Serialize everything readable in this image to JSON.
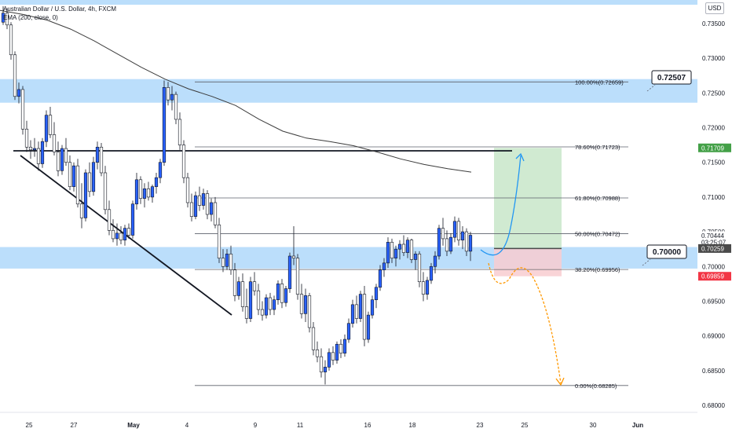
{
  "header": {
    "title": "Australian Dollar / U.S. Dollar, 4h, FXCM",
    "indicator": "EMA (200, close, 0)",
    "currency_button": "USD"
  },
  "colors": {
    "up": "#2962ff",
    "down": "#ffffff",
    "wick": "#131722",
    "zone": "#bbdefb",
    "target": "#c8e6c9",
    "stop": "#f8cdd0",
    "ema": "#3c3c3c",
    "arrow_up": "#2196f3",
    "arrow_down": "#ff9800",
    "green_label": "#43a047",
    "red_label": "#f23645",
    "price_label": "#4a4a4a"
  },
  "chart_data": {
    "type": "candlestick",
    "symbol": "Australian Dollar / U.S. Dollar",
    "timeframe": "4h",
    "source": "FXCM",
    "x_tick_labels": [
      "25",
      "27",
      "May",
      "4",
      "9",
      "11",
      "16",
      "18",
      "23",
      "25",
      "30",
      "Jun"
    ],
    "y_tick_labels": [
      "0.73500",
      "0.73000",
      "0.72500",
      "0.72000",
      "0.71500",
      "0.71000",
      "0.70500",
      "0.70000",
      "0.69500",
      "0.69000",
      "0.68500",
      "0.68000"
    ],
    "y_ticks": [
      0.735,
      0.73,
      0.725,
      0.72,
      0.715,
      0.71,
      0.705,
      0.7,
      0.695,
      0.69,
      0.685,
      0.68
    ],
    "fib_levels": [
      {
        "label": "100.00%(0.72659)",
        "price": 0.72659
      },
      {
        "label": "78.60%(0.71723)",
        "price": 0.71723
      },
      {
        "label": "61.80%(0.70988)",
        "price": 0.70988
      },
      {
        "label": "50.00%(0.70472)",
        "price": 0.70472
      },
      {
        "label": "38.20%(0.69956)",
        "price": 0.69956
      },
      {
        "label": "0.00%(0.68285)",
        "price": 0.68285
      }
    ],
    "zones": [
      {
        "from": 0.7236,
        "to": 0.727
      },
      {
        "from": 0.6997,
        "to": 0.7028
      }
    ],
    "callouts": [
      {
        "label": "0.72507",
        "price": 0.72507
      },
      {
        "label": "0.70000",
        "price": 0.7
      }
    ],
    "price_labels": [
      {
        "label": "0.71709",
        "price": 0.71709,
        "style": "green"
      },
      {
        "label": "0.70444",
        "price": 0.70444,
        "style": "plain"
      },
      {
        "label": "03:25:07",
        "price": 0.7035,
        "style": "plain"
      },
      {
        "label": "0.70259",
        "price": 0.70259,
        "style": "dark"
      },
      {
        "label": "0.69859",
        "price": 0.69859,
        "style": "red"
      }
    ],
    "position": {
      "entry": 0.70259,
      "target": 0.71709,
      "stop": 0.69859
    },
    "ema_200": [
      [
        0,
        0.7369
      ],
      [
        30,
        0.7363
      ],
      [
        60,
        0.7355
      ],
      [
        90,
        0.7342
      ],
      [
        120,
        0.7325
      ],
      [
        150,
        0.7306
      ],
      [
        180,
        0.7287
      ],
      [
        210,
        0.727
      ],
      [
        240,
        0.7256
      ],
      [
        270,
        0.7245
      ],
      [
        300,
        0.7232
      ],
      [
        330,
        0.7212
      ],
      [
        360,
        0.7195
      ],
      [
        390,
        0.7185
      ],
      [
        420,
        0.718
      ],
      [
        450,
        0.7174
      ],
      [
        480,
        0.7165
      ],
      [
        510,
        0.7155
      ],
      [
        540,
        0.7147
      ],
      [
        570,
        0.7141
      ],
      [
        600,
        0.7136
      ]
    ],
    "candles": [
      {
        "i": 0,
        "o": 0.7352,
        "h": 0.7375,
        "l": 0.7348,
        "c": 0.7365
      },
      {
        "i": 1,
        "o": 0.7365,
        "h": 0.7372,
        "l": 0.7342,
        "c": 0.7348
      },
      {
        "i": 2,
        "o": 0.7348,
        "h": 0.7352,
        "l": 0.7298,
        "c": 0.7305
      },
      {
        "i": 3,
        "o": 0.7305,
        "h": 0.731,
        "l": 0.724,
        "c": 0.7245
      },
      {
        "i": 4,
        "o": 0.7245,
        "h": 0.7265,
        "l": 0.7235,
        "c": 0.7255
      },
      {
        "i": 5,
        "o": 0.7255,
        "h": 0.726,
        "l": 0.719,
        "c": 0.7198
      },
      {
        "i": 6,
        "o": 0.7198,
        "h": 0.721,
        "l": 0.7165,
        "c": 0.7172
      },
      {
        "i": 7,
        "o": 0.7172,
        "h": 0.7182,
        "l": 0.7155,
        "c": 0.7168
      },
      {
        "i": 8,
        "o": 0.7168,
        "h": 0.7185,
        "l": 0.7158,
        "c": 0.717
      },
      {
        "i": 9,
        "o": 0.717,
        "h": 0.718,
        "l": 0.7138,
        "c": 0.7148
      },
      {
        "i": 10,
        "o": 0.7148,
        "h": 0.7185,
        "l": 0.7142,
        "c": 0.718
      },
      {
        "i": 11,
        "o": 0.718,
        "h": 0.7225,
        "l": 0.7172,
        "c": 0.7218
      },
      {
        "i": 12,
        "o": 0.7218,
        "h": 0.723,
        "l": 0.7185,
        "c": 0.719
      },
      {
        "i": 13,
        "o": 0.719,
        "h": 0.7208,
        "l": 0.716,
        "c": 0.7165
      },
      {
        "i": 14,
        "o": 0.7165,
        "h": 0.718,
        "l": 0.713,
        "c": 0.7138
      },
      {
        "i": 15,
        "o": 0.7138,
        "h": 0.7175,
        "l": 0.7132,
        "c": 0.717
      },
      {
        "i": 16,
        "o": 0.717,
        "h": 0.7185,
        "l": 0.7145,
        "c": 0.715
      },
      {
        "i": 17,
        "o": 0.715,
        "h": 0.716,
        "l": 0.711,
        "c": 0.7115
      },
      {
        "i": 18,
        "o": 0.7115,
        "h": 0.715,
        "l": 0.7108,
        "c": 0.7145
      },
      {
        "i": 19,
        "o": 0.7145,
        "h": 0.7155,
        "l": 0.7085,
        "c": 0.709
      },
      {
        "i": 20,
        "o": 0.709,
        "h": 0.712,
        "l": 0.7055,
        "c": 0.707
      },
      {
        "i": 21,
        "o": 0.707,
        "h": 0.714,
        "l": 0.7065,
        "c": 0.7135
      },
      {
        "i": 22,
        "o": 0.7135,
        "h": 0.715,
        "l": 0.71,
        "c": 0.7108
      },
      {
        "i": 23,
        "o": 0.7108,
        "h": 0.7158,
        "l": 0.7102,
        "c": 0.715
      },
      {
        "i": 24,
        "o": 0.715,
        "h": 0.718,
        "l": 0.714,
        "c": 0.7172
      },
      {
        "i": 25,
        "o": 0.7172,
        "h": 0.7178,
        "l": 0.713,
        "c": 0.7135
      },
      {
        "i": 26,
        "o": 0.7135,
        "h": 0.7145,
        "l": 0.7075,
        "c": 0.7082
      },
      {
        "i": 27,
        "o": 0.7082,
        "h": 0.7095,
        "l": 0.7045,
        "c": 0.7052
      },
      {
        "i": 28,
        "o": 0.7052,
        "h": 0.7068,
        "l": 0.7035,
        "c": 0.704
      },
      {
        "i": 29,
        "o": 0.704,
        "h": 0.7062,
        "l": 0.703,
        "c": 0.7048
      },
      {
        "i": 30,
        "o": 0.7048,
        "h": 0.7058,
        "l": 0.7032,
        "c": 0.7038
      },
      {
        "i": 31,
        "o": 0.7038,
        "h": 0.706,
        "l": 0.703,
        "c": 0.7055
      },
      {
        "i": 32,
        "o": 0.7055,
        "h": 0.7062,
        "l": 0.704,
        "c": 0.7045
      },
      {
        "i": 33,
        "o": 0.7045,
        "h": 0.7095,
        "l": 0.704,
        "c": 0.709
      },
      {
        "i": 34,
        "o": 0.709,
        "h": 0.7135,
        "l": 0.7082,
        "c": 0.7125
      },
      {
        "i": 35,
        "o": 0.7125,
        "h": 0.713,
        "l": 0.709,
        "c": 0.7098
      },
      {
        "i": 36,
        "o": 0.7098,
        "h": 0.712,
        "l": 0.7085,
        "c": 0.7112
      },
      {
        "i": 37,
        "o": 0.7112,
        "h": 0.7122,
        "l": 0.7095,
        "c": 0.71
      },
      {
        "i": 38,
        "o": 0.71,
        "h": 0.7118,
        "l": 0.7092,
        "c": 0.7115
      },
      {
        "i": 39,
        "o": 0.7115,
        "h": 0.7135,
        "l": 0.7105,
        "c": 0.7128
      },
      {
        "i": 40,
        "o": 0.7128,
        "h": 0.7155,
        "l": 0.712,
        "c": 0.715
      },
      {
        "i": 41,
        "o": 0.715,
        "h": 0.7268,
        "l": 0.7145,
        "c": 0.7258
      },
      {
        "i": 42,
        "o": 0.7258,
        "h": 0.7266,
        "l": 0.7232,
        "c": 0.724
      },
      {
        "i": 43,
        "o": 0.724,
        "h": 0.726,
        "l": 0.7225,
        "c": 0.7248
      },
      {
        "i": 44,
        "o": 0.7248,
        "h": 0.7252,
        "l": 0.7205,
        "c": 0.7212
      },
      {
        "i": 45,
        "o": 0.7212,
        "h": 0.7222,
        "l": 0.7168,
        "c": 0.7175
      },
      {
        "i": 46,
        "o": 0.7175,
        "h": 0.7182,
        "l": 0.712,
        "c": 0.7128
      },
      {
        "i": 47,
        "o": 0.7128,
        "h": 0.7135,
        "l": 0.7085,
        "c": 0.7092
      },
      {
        "i": 48,
        "o": 0.7092,
        "h": 0.7105,
        "l": 0.7065,
        "c": 0.7072
      },
      {
        "i": 49,
        "o": 0.7072,
        "h": 0.7108,
        "l": 0.7068,
        "c": 0.7102
      },
      {
        "i": 50,
        "o": 0.7102,
        "h": 0.7115,
        "l": 0.708,
        "c": 0.7088
      },
      {
        "i": 51,
        "o": 0.7088,
        "h": 0.7112,
        "l": 0.7082,
        "c": 0.7105
      },
      {
        "i": 52,
        "o": 0.7105,
        "h": 0.711,
        "l": 0.7068,
        "c": 0.7075
      },
      {
        "i": 53,
        "o": 0.7075,
        "h": 0.7098,
        "l": 0.7065,
        "c": 0.7092
      },
      {
        "i": 54,
        "o": 0.7092,
        "h": 0.71,
        "l": 0.7055,
        "c": 0.706
      },
      {
        "i": 55,
        "o": 0.706,
        "h": 0.707,
        "l": 0.7005,
        "c": 0.7012
      },
      {
        "i": 56,
        "o": 0.7012,
        "h": 0.7025,
        "l": 0.6992,
        "c": 0.7
      },
      {
        "i": 57,
        "o": 0.7,
        "h": 0.7025,
        "l": 0.6995,
        "c": 0.7018
      },
      {
        "i": 58,
        "o": 0.7018,
        "h": 0.703,
        "l": 0.6988,
        "c": 0.6995
      },
      {
        "i": 59,
        "o": 0.6995,
        "h": 0.7005,
        "l": 0.695,
        "c": 0.6958
      },
      {
        "i": 60,
        "o": 0.6958,
        "h": 0.6985,
        "l": 0.6952,
        "c": 0.6978
      },
      {
        "i": 61,
        "o": 0.6978,
        "h": 0.699,
        "l": 0.6935,
        "c": 0.6942
      },
      {
        "i": 62,
        "o": 0.6942,
        "h": 0.6968,
        "l": 0.6918,
        "c": 0.6925
      },
      {
        "i": 63,
        "o": 0.6925,
        "h": 0.6985,
        "l": 0.692,
        "c": 0.6978
      },
      {
        "i": 64,
        "o": 0.6978,
        "h": 0.6992,
        "l": 0.6958,
        "c": 0.6965
      },
      {
        "i": 65,
        "o": 0.6965,
        "h": 0.6975,
        "l": 0.693,
        "c": 0.6938
      },
      {
        "i": 66,
        "o": 0.6938,
        "h": 0.695,
        "l": 0.6922,
        "c": 0.693
      },
      {
        "i": 67,
        "o": 0.693,
        "h": 0.696,
        "l": 0.6925,
        "c": 0.6955
      },
      {
        "i": 68,
        "o": 0.6955,
        "h": 0.6962,
        "l": 0.693,
        "c": 0.6938
      },
      {
        "i": 69,
        "o": 0.6938,
        "h": 0.6958,
        "l": 0.693,
        "c": 0.6952
      },
      {
        "i": 70,
        "o": 0.6952,
        "h": 0.698,
        "l": 0.6945,
        "c": 0.6975
      },
      {
        "i": 71,
        "o": 0.6975,
        "h": 0.6982,
        "l": 0.694,
        "c": 0.6948
      },
      {
        "i": 72,
        "o": 0.6948,
        "h": 0.6972,
        "l": 0.6942,
        "c": 0.6968
      },
      {
        "i": 73,
        "o": 0.6968,
        "h": 0.702,
        "l": 0.6962,
        "c": 0.7015
      },
      {
        "i": 74,
        "o": 0.7015,
        "h": 0.7058,
        "l": 0.7002,
        "c": 0.7012
      },
      {
        "i": 75,
        "o": 0.7012,
        "h": 0.7018,
        "l": 0.6952,
        "c": 0.696
      },
      {
        "i": 76,
        "o": 0.696,
        "h": 0.6975,
        "l": 0.6925,
        "c": 0.6932
      },
      {
        "i": 77,
        "o": 0.6932,
        "h": 0.6968,
        "l": 0.692,
        "c": 0.6958
      },
      {
        "i": 78,
        "o": 0.6958,
        "h": 0.6962,
        "l": 0.6905,
        "c": 0.6912
      },
      {
        "i": 79,
        "o": 0.6912,
        "h": 0.692,
        "l": 0.6872,
        "c": 0.688
      },
      {
        "i": 80,
        "o": 0.688,
        "h": 0.6892,
        "l": 0.6862,
        "c": 0.687
      },
      {
        "i": 81,
        "o": 0.687,
        "h": 0.6882,
        "l": 0.684,
        "c": 0.6848
      },
      {
        "i": 82,
        "o": 0.6848,
        "h": 0.6865,
        "l": 0.683,
        "c": 0.6855
      },
      {
        "i": 83,
        "o": 0.6855,
        "h": 0.6882,
        "l": 0.685,
        "c": 0.6876
      },
      {
        "i": 84,
        "o": 0.6876,
        "h": 0.6885,
        "l": 0.6858,
        "c": 0.6865
      },
      {
        "i": 85,
        "o": 0.6865,
        "h": 0.6892,
        "l": 0.686,
        "c": 0.6888
      },
      {
        "i": 86,
        "o": 0.6888,
        "h": 0.6895,
        "l": 0.6868,
        "c": 0.6875
      },
      {
        "i": 87,
        "o": 0.6875,
        "h": 0.6902,
        "l": 0.687,
        "c": 0.6895
      },
      {
        "i": 88,
        "o": 0.6895,
        "h": 0.6925,
        "l": 0.689,
        "c": 0.6918
      },
      {
        "i": 89,
        "o": 0.6918,
        "h": 0.6952,
        "l": 0.6912,
        "c": 0.6945
      },
      {
        "i": 90,
        "o": 0.6945,
        "h": 0.6958,
        "l": 0.6918,
        "c": 0.6925
      },
      {
        "i": 91,
        "o": 0.6925,
        "h": 0.6965,
        "l": 0.692,
        "c": 0.696
      },
      {
        "i": 92,
        "o": 0.696,
        "h": 0.6972,
        "l": 0.6885,
        "c": 0.6895
      },
      {
        "i": 93,
        "o": 0.6895,
        "h": 0.6935,
        "l": 0.689,
        "c": 0.693
      },
      {
        "i": 94,
        "o": 0.693,
        "h": 0.6958,
        "l": 0.6925,
        "c": 0.6952
      },
      {
        "i": 95,
        "o": 0.6952,
        "h": 0.6975,
        "l": 0.694,
        "c": 0.697
      },
      {
        "i": 96,
        "o": 0.697,
        "h": 0.7002,
        "l": 0.6965,
        "c": 0.6995
      },
      {
        "i": 97,
        "o": 0.6995,
        "h": 0.7012,
        "l": 0.6985,
        "c": 0.7005
      },
      {
        "i": 98,
        "o": 0.7005,
        "h": 0.7042,
        "l": 0.6998,
        "c": 0.7035
      },
      {
        "i": 99,
        "o": 0.7035,
        "h": 0.704,
        "l": 0.7005,
        "c": 0.7012
      },
      {
        "i": 100,
        "o": 0.7012,
        "h": 0.703,
        "l": 0.7,
        "c": 0.7025
      },
      {
        "i": 101,
        "o": 0.7025,
        "h": 0.7038,
        "l": 0.701,
        "c": 0.7032
      },
      {
        "i": 102,
        "o": 0.7032,
        "h": 0.7045,
        "l": 0.7015,
        "c": 0.702
      },
      {
        "i": 103,
        "o": 0.702,
        "h": 0.7042,
        "l": 0.7012,
        "c": 0.7038
      },
      {
        "i": 104,
        "o": 0.7038,
        "h": 0.704,
        "l": 0.7005,
        "c": 0.701
      },
      {
        "i": 105,
        "o": 0.701,
        "h": 0.7022,
        "l": 0.6995,
        "c": 0.7018
      },
      {
        "i": 106,
        "o": 0.7018,
        "h": 0.7022,
        "l": 0.697,
        "c": 0.6978
      },
      {
        "i": 107,
        "o": 0.6978,
        "h": 0.6992,
        "l": 0.695,
        "c": 0.696
      },
      {
        "i": 108,
        "o": 0.696,
        "h": 0.6985,
        "l": 0.6952,
        "c": 0.698
      },
      {
        "i": 109,
        "o": 0.698,
        "h": 0.7005,
        "l": 0.6975,
        "c": 0.7
      },
      {
        "i": 110,
        "o": 0.7,
        "h": 0.7022,
        "l": 0.699,
        "c": 0.7015
      },
      {
        "i": 111,
        "o": 0.7015,
        "h": 0.706,
        "l": 0.701,
        "c": 0.7055
      },
      {
        "i": 112,
        "o": 0.7055,
        "h": 0.707,
        "l": 0.703,
        "c": 0.704
      },
      {
        "i": 113,
        "o": 0.704,
        "h": 0.7052,
        "l": 0.7015,
        "c": 0.7022
      },
      {
        "i": 114,
        "o": 0.7022,
        "h": 0.7048,
        "l": 0.7018,
        "c": 0.7042
      },
      {
        "i": 115,
        "o": 0.7042,
        "h": 0.7072,
        "l": 0.7035,
        "c": 0.7065
      },
      {
        "i": 116,
        "o": 0.7065,
        "h": 0.707,
        "l": 0.703,
        "c": 0.7038
      },
      {
        "i": 117,
        "o": 0.7038,
        "h": 0.7058,
        "l": 0.7025,
        "c": 0.705
      },
      {
        "i": 118,
        "o": 0.705,
        "h": 0.7055,
        "l": 0.7015,
        "c": 0.7022
      },
      {
        "i": 119,
        "o": 0.7022,
        "h": 0.705,
        "l": 0.7008,
        "c": 0.7045
      }
    ],
    "x_domain": [
      0,
      134
    ],
    "y_domain": [
      0.6775,
      0.7395
    ]
  }
}
